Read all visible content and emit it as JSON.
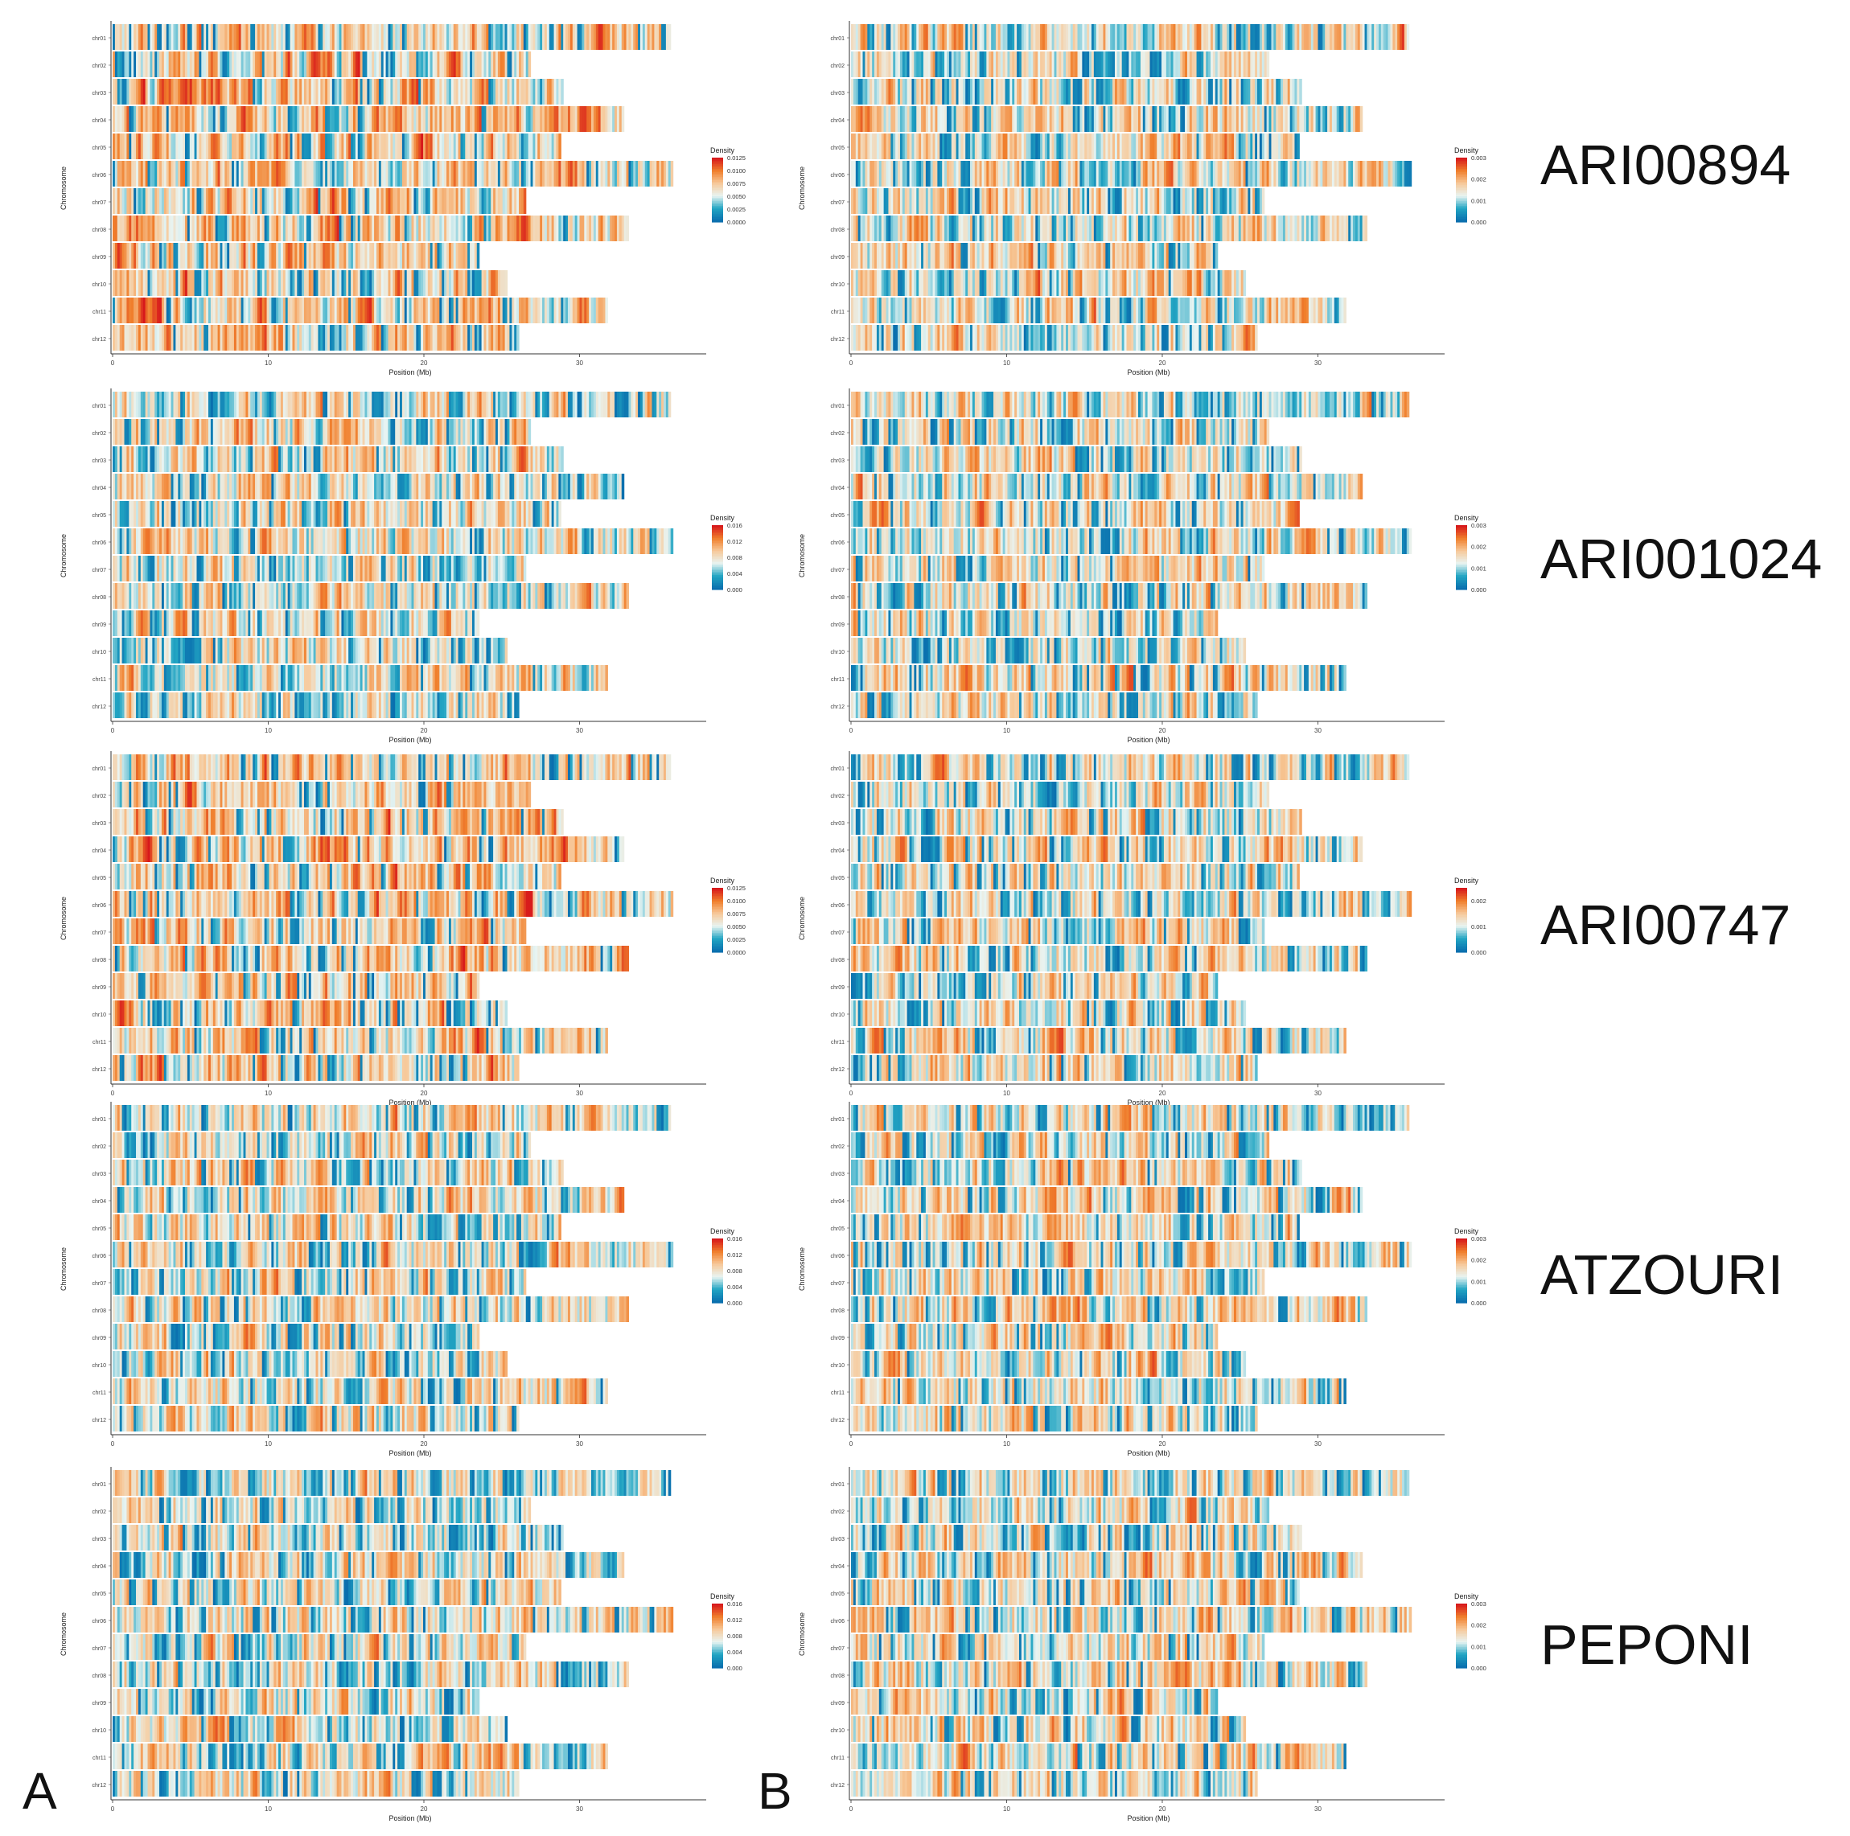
{
  "chart_data": {
    "type": "heatmap",
    "panel_labels": [
      "A",
      "B"
    ],
    "sample_names": [
      "ARI00894",
      "ARI001024",
      "ARI00747",
      "ATZOURI",
      "PEPONI"
    ],
    "chromosomes": [
      "chr01",
      "chr02",
      "chr03",
      "chr04",
      "chr05",
      "chr06",
      "chr07",
      "chr08",
      "chr09",
      "chr10",
      "chr11",
      "chr12"
    ],
    "chromosome_lengths_mb": [
      35.8,
      26.8,
      28.9,
      32.9,
      28.8,
      36.0,
      26.5,
      33.2,
      23.6,
      25.3,
      31.8,
      26.1
    ],
    "xlabel": "Position (Mb)",
    "ylabel": "Chromosome",
    "x_ticks": [
      "0",
      "10",
      "20",
      "30"
    ],
    "x_tick_values": [
      0,
      10,
      20,
      30
    ],
    "xlim": [
      0,
      38
    ],
    "legend_title": "Density",
    "colorscale": [
      "#0a6fae",
      "#22a5c3",
      "#e8f4f2",
      "#f7c99a",
      "#f07f2c",
      "#d7191c"
    ],
    "panels": [
      {
        "column": "A",
        "row": 0,
        "legend_ticks": [
          "0.0125",
          "0.0100",
          "0.0075",
          "0.0050",
          "0.0025",
          "0.0000"
        ],
        "legend_max": 0.0125,
        "seed": 11,
        "mean_density": 0.62
      },
      {
        "column": "B",
        "row": 0,
        "legend_ticks": [
          "0.003",
          "0.002",
          "0.001",
          "0.000"
        ],
        "legend_max": 0.003,
        "seed": 12,
        "mean_density": 0.46
      },
      {
        "column": "A",
        "row": 1,
        "legend_ticks": [
          "0.016",
          "0.012",
          "0.008",
          "0.004",
          "0.000"
        ],
        "legend_max": 0.016,
        "seed": 21,
        "mean_density": 0.45
      },
      {
        "column": "B",
        "row": 1,
        "legend_ticks": [
          "0.003",
          "0.002",
          "0.001",
          "0.000"
        ],
        "legend_max": 0.003,
        "seed": 22,
        "mean_density": 0.46
      },
      {
        "column": "A",
        "row": 2,
        "legend_ticks": [
          "0.0125",
          "0.0100",
          "0.0075",
          "0.0050",
          "0.0025",
          "0.0000"
        ],
        "legend_max": 0.0125,
        "seed": 31,
        "mean_density": 0.62
      },
      {
        "column": "B",
        "row": 2,
        "legend_ticks": [
          "0.002",
          "0.001",
          "0.000"
        ],
        "legend_max": 0.0025,
        "seed": 32,
        "mean_density": 0.46
      },
      {
        "column": "A",
        "row": 3,
        "legend_ticks": [
          "0.016",
          "0.012",
          "0.008",
          "0.004",
          "0.000"
        ],
        "legend_max": 0.016,
        "seed": 41,
        "mean_density": 0.47
      },
      {
        "column": "B",
        "row": 3,
        "legend_ticks": [
          "0.003",
          "0.002",
          "0.001",
          "0.000"
        ],
        "legend_max": 0.003,
        "seed": 42,
        "mean_density": 0.48
      },
      {
        "column": "A",
        "row": 4,
        "legend_ticks": [
          "0.016",
          "0.012",
          "0.008",
          "0.004",
          "0.000"
        ],
        "legend_max": 0.016,
        "seed": 51,
        "mean_density": 0.4
      },
      {
        "column": "B",
        "row": 4,
        "legend_ticks": [
          "0.003",
          "0.002",
          "0.001",
          "0.000"
        ],
        "legend_max": 0.003,
        "seed": 52,
        "mean_density": 0.47
      }
    ]
  }
}
